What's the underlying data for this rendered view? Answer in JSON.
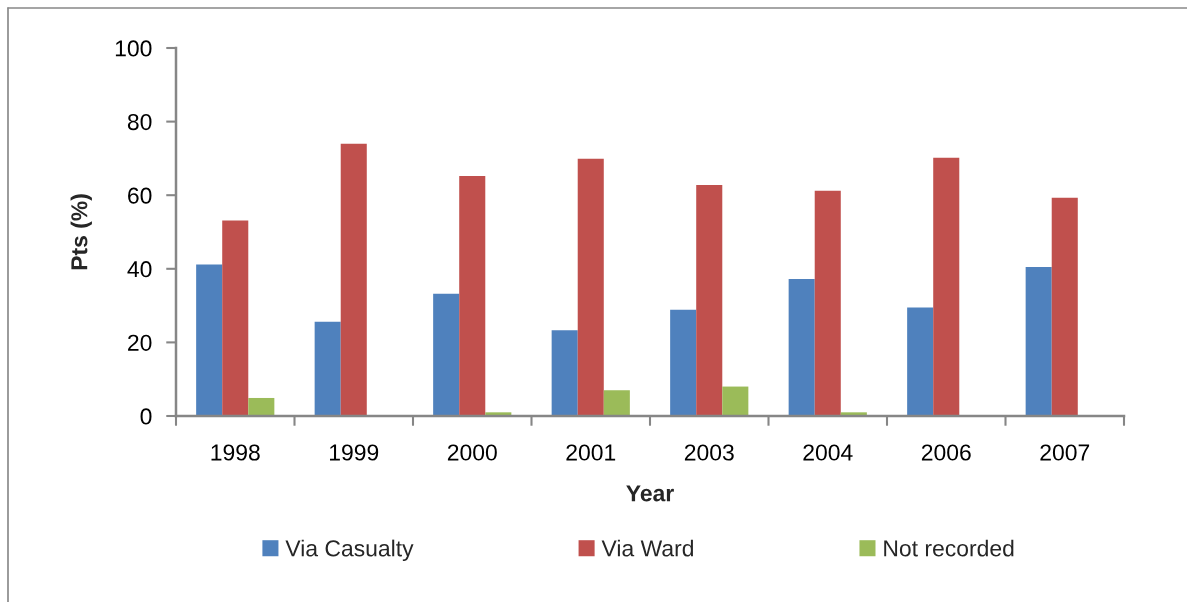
{
  "chart_data": {
    "type": "bar",
    "xlabel": "Year",
    "ylabel": "Pts (%)",
    "categories": [
      "1998",
      "1999",
      "2000",
      "2001",
      "2003",
      "2004",
      "2006",
      "2007"
    ],
    "series": [
      {
        "name": "Via Casualty",
        "color": "#4f81bd",
        "values": [
          41.2,
          25.6,
          33.2,
          23.3,
          28.9,
          37.2,
          29.5,
          40.5
        ]
      },
      {
        "name": "Via Ward",
        "color": "#c0504d",
        "values": [
          53.1,
          74.0,
          65.2,
          69.9,
          62.8,
          61.2,
          70.2,
          59.3
        ]
      },
      {
        "name": "Not recorded",
        "color": "#9bbb59",
        "values": [
          4.9,
          null,
          1.0,
          7.0,
          8.0,
          1.0,
          null,
          null
        ]
      }
    ],
    "ylim": [
      0,
      100
    ],
    "yticks": [
      0,
      20,
      40,
      60,
      80,
      100
    ],
    "legend": "bottom"
  }
}
